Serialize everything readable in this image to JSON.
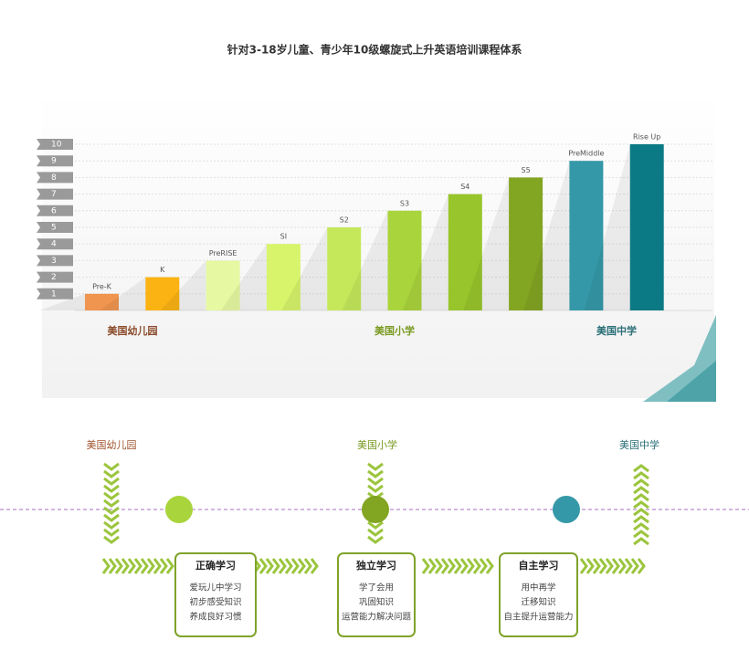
{
  "chart_data": {
    "type": "bar",
    "title": "针对3-18岁儿童、青少年10级螺旋式上升英语培训课程体系",
    "categories": [
      "Pre-K",
      "K",
      "PreRISE",
      "SI",
      "S2",
      "S3",
      "S4",
      "S5",
      "PreMiddle",
      "Rise Up"
    ],
    "values": [
      1,
      2,
      3,
      4,
      5,
      6,
      7,
      8,
      9,
      10
    ],
    "colors": [
      "#f0954f",
      "#fbb314",
      "#e6f9a2",
      "#d7f46b",
      "#c5e85a",
      "#a9d43b",
      "#98c52b",
      "#82a522",
      "#3598a8",
      "#0b7a85"
    ],
    "ylim": [
      0,
      10
    ],
    "yticks": [
      1,
      2,
      3,
      4,
      5,
      6,
      7,
      8,
      9,
      10
    ],
    "grid": true,
    "groups": [
      {
        "name": "美国幼儿园",
        "color": "#8b4a2a"
      },
      {
        "name": "美国小学",
        "color": "#7a9a22"
      },
      {
        "name": "美国中学",
        "color": "#2b6f77"
      }
    ]
  },
  "flow": {
    "stages": [
      {
        "name": "美国幼儿园",
        "color": "#a0522d"
      },
      {
        "name": "美国小学",
        "color": "#7a9a22"
      },
      {
        "name": "美国中学",
        "color": "#2b6f77"
      }
    ],
    "nodes": [
      "#a9d43b",
      "#82a522",
      "#3598a8"
    ],
    "boxes": [
      {
        "title": "正确学习",
        "lines": [
          "爱玩儿中学习",
          "初步感受知识",
          "养成良好习惯"
        ]
      },
      {
        "title": "独立学习",
        "lines": [
          "学了会用",
          "巩固知识",
          "运营能力解决问题"
        ]
      },
      {
        "title": "自主学习",
        "lines": [
          "用中再学",
          "迁移知识",
          "自主提升运营能力"
        ]
      }
    ]
  }
}
